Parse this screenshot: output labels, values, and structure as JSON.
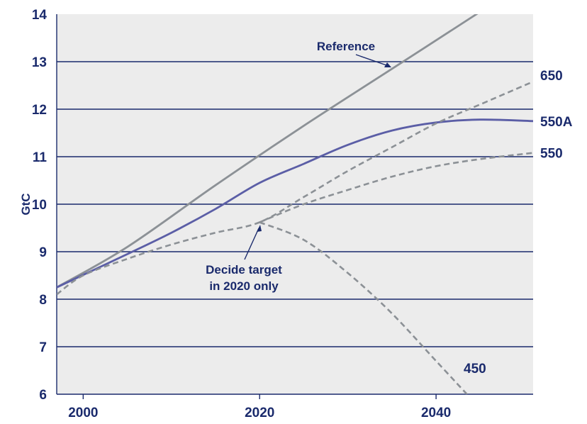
{
  "chart_data": {
    "type": "line",
    "title": "",
    "xlabel": "",
    "ylabel": "GtC",
    "xlim": [
      1997,
      2051
    ],
    "ylim": [
      6,
      14
    ],
    "x_ticks": [
      "2000",
      "2020",
      "2040"
    ],
    "y_ticks": [
      "6",
      "7",
      "8",
      "9",
      "10",
      "11",
      "12",
      "13",
      "14"
    ],
    "grid": "horizontal",
    "legend": "none",
    "series": [
      {
        "name": "Reference",
        "style": "solid",
        "color": "#8c9196",
        "x": [
          1997,
          2005,
          2015,
          2025,
          2035,
          2045
        ],
        "y": [
          8.25,
          9.1,
          10.4,
          11.65,
          12.85,
          14.05
        ]
      },
      {
        "name": "550A",
        "style": "solid",
        "color": "#5b5ea6",
        "x": [
          1997,
          2005,
          2010,
          2015,
          2020,
          2025,
          2030,
          2035,
          2040,
          2045,
          2051
        ],
        "y": [
          8.25,
          8.95,
          9.4,
          9.9,
          10.45,
          10.85,
          11.25,
          11.55,
          11.72,
          11.78,
          11.75
        ]
      },
      {
        "name": "650",
        "style": "dashed",
        "color": "#8c9196",
        "x": [
          1997,
          2000,
          2005,
          2010,
          2015,
          2020,
          2025,
          2030,
          2035,
          2040,
          2045,
          2051
        ],
        "y": [
          8.1,
          8.5,
          8.85,
          9.15,
          9.4,
          9.62,
          10.15,
          10.7,
          11.2,
          11.7,
          12.1,
          12.58
        ]
      },
      {
        "name": "550",
        "style": "dashed",
        "color": "#8c9196",
        "x": [
          2020,
          2025,
          2030,
          2035,
          2040,
          2045,
          2051
        ],
        "y": [
          9.62,
          10.0,
          10.3,
          10.58,
          10.8,
          10.95,
          11.08
        ]
      },
      {
        "name": "450",
        "style": "dashed",
        "color": "#8c9196",
        "x": [
          2020,
          2025,
          2030,
          2035,
          2040,
          2044
        ],
        "y": [
          9.62,
          9.25,
          8.55,
          7.7,
          6.7,
          5.9
        ]
      }
    ],
    "annotations": [
      {
        "lines": [
          "Reference"
        ],
        "x": 2032,
        "y": 13.2
      },
      {
        "lines": [
          "Decide target",
          "in 2020 only"
        ],
        "x": 2017,
        "y": 8.25
      }
    ],
    "colors": {
      "plot_background": "#ececec",
      "gridline": "#1a2a6c",
      "axis": "#1a2a6c",
      "text": "#1a2a6c"
    }
  }
}
